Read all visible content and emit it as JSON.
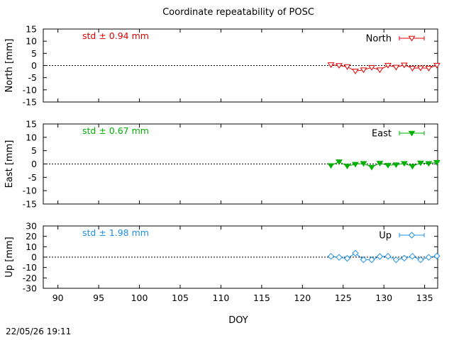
{
  "title": "Coordinate repeatability of POSC",
  "xlabel": "DOY",
  "timestamp": "22/05/26 19:11",
  "colors": {
    "axis": "#000000",
    "north": "#e00000",
    "east": "#00b000",
    "up": "#1e90e8"
  },
  "chart_data": [
    {
      "type": "line",
      "panel": "north",
      "ylabel": "North [mm]",
      "xlim": [
        88.2,
        136.6
      ],
      "ylim": [
        -15,
        15
      ],
      "yticks": [
        15,
        10,
        5,
        0,
        -5,
        -10,
        -15
      ],
      "xticks": [
        90,
        95,
        100,
        105,
        110,
        115,
        120,
        125,
        130,
        135
      ],
      "annotation": "std ± 0.94 mm",
      "legend": "North",
      "legend_position": "top-right",
      "marker": "triangle-down-open",
      "zero_line": true,
      "series": [
        {
          "name": "North",
          "x": [
            123.5,
            124.5,
            125.5,
            126.5,
            127.5,
            128.5,
            129.5,
            130.5,
            131.5,
            132.5,
            133.5,
            134.5,
            135.5,
            136.5
          ],
          "y": [
            0.3,
            0.0,
            -0.5,
            -2.3,
            -1.8,
            -0.8,
            -1.8,
            0.1,
            -0.7,
            0.2,
            -1.1,
            -1.0,
            -1.1,
            0.1
          ]
        }
      ]
    },
    {
      "type": "line",
      "panel": "east",
      "ylabel": "East [mm]",
      "xlim": [
        88.2,
        136.6
      ],
      "ylim": [
        -15,
        15
      ],
      "yticks": [
        15,
        10,
        5,
        0,
        -5,
        -10,
        -15
      ],
      "xticks": [
        90,
        95,
        100,
        105,
        110,
        115,
        120,
        125,
        130,
        135
      ],
      "annotation": "std ± 0.67 mm",
      "legend": "East",
      "legend_position": "top-right",
      "marker": "triangle-down-filled",
      "zero_line": true,
      "series": [
        {
          "name": "East",
          "x": [
            123.5,
            124.5,
            125.5,
            126.5,
            127.5,
            128.5,
            129.5,
            130.5,
            131.5,
            132.5,
            133.5,
            134.5,
            135.5,
            136.5
          ],
          "y": [
            -0.6,
            0.8,
            -0.8,
            -0.1,
            0.2,
            -1.2,
            0.3,
            -0.5,
            -0.3,
            0.2,
            -0.9,
            0.4,
            0.2,
            0.6
          ]
        }
      ]
    },
    {
      "type": "line",
      "panel": "up",
      "ylabel": "Up [mm]",
      "xlim": [
        88.2,
        136.6
      ],
      "ylim": [
        -30,
        30
      ],
      "yticks": [
        30,
        20,
        10,
        0,
        -10,
        -20,
        -30
      ],
      "xticks": [
        90,
        95,
        100,
        105,
        110,
        115,
        120,
        125,
        130,
        135
      ],
      "xticklabels": [
        "90",
        "95",
        "100",
        "105",
        "110",
        "115",
        "120",
        "125",
        "130",
        "135"
      ],
      "annotation": "std ± 1.98 mm",
      "legend": "Up",
      "legend_position": "top-right",
      "marker": "diamond-open",
      "zero_line": true,
      "series": [
        {
          "name": "Up",
          "x": [
            123.5,
            124.5,
            125.5,
            126.5,
            127.5,
            128.5,
            129.5,
            130.5,
            131.5,
            132.5,
            133.5,
            134.5,
            135.5,
            136.5
          ],
          "y": [
            0.8,
            -0.2,
            -1.2,
            3.8,
            -2.5,
            -2.5,
            0.6,
            0.8,
            -2.5,
            -1.0,
            0.8,
            -2.5,
            -0.2,
            1.0
          ]
        }
      ]
    }
  ]
}
